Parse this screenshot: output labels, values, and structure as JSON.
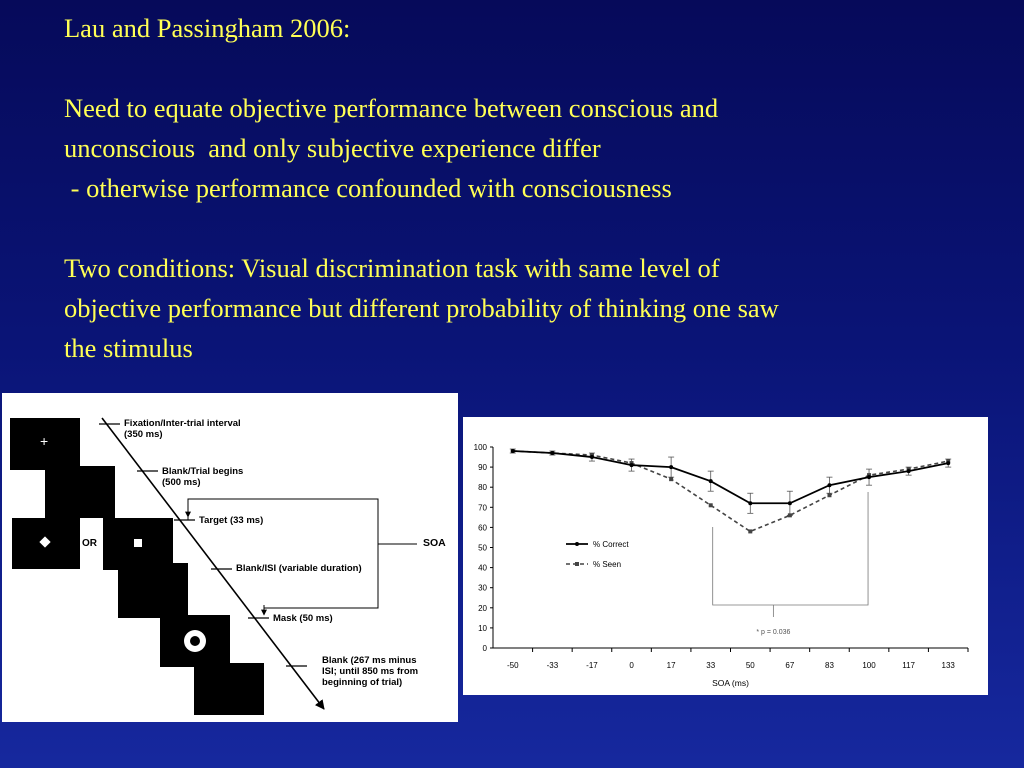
{
  "slide": {
    "lines": [
      "Lau and Passingham 2006:",
      "",
      "Need to equate objective performance between conscious and",
      "unconscious  and only subjective experience differ",
      " - otherwise performance confounded with consciousness",
      "",
      "Two conditions: Visual discrimination task with same level of",
      "objective performance but different probability of thinking one saw",
      "the stimulus"
    ]
  },
  "diagram": {
    "fixation": "Fixation/Inter-trial interval\n(350 ms)",
    "blank_trial": "Blank/Trial begins\n(500 ms)",
    "target": "Target (33 ms)",
    "blank_isi": "Blank/ISI (variable duration)",
    "mask": "Mask (50 ms)",
    "blank_end": "Blank (267 ms minus\nISI; until 850 ms from\nbeginning of trial)",
    "soa": "SOA",
    "or": "OR",
    "fixation_glyph": "+"
  },
  "chart_data": {
    "type": "line",
    "x": [
      -50,
      -33,
      -17,
      0,
      17,
      33,
      50,
      67,
      83,
      100,
      117,
      133
    ],
    "series": [
      {
        "name": "% Correct",
        "values": [
          98,
          97,
          95,
          91,
          90,
          83,
          72,
          72,
          81,
          85,
          88,
          92
        ],
        "errors": [
          1,
          1,
          2,
          3,
          5,
          5,
          5,
          6,
          4,
          4,
          2,
          2
        ],
        "style": "solid"
      },
      {
        "name": "% Seen",
        "values": [
          98,
          97,
          96,
          92,
          84,
          71,
          58,
          66,
          76,
          86,
          89,
          93
        ],
        "style": "dashed"
      }
    ],
    "xlabel": "SOA (ms)",
    "ylabel": "",
    "ylim": [
      0,
      100
    ],
    "yticks": [
      0,
      10,
      20,
      30,
      40,
      50,
      60,
      70,
      80,
      90,
      100
    ],
    "annotation": "* p = 0.036",
    "grid": false,
    "legend": "left-middle",
    "colors": {
      "line": "#000000",
      "seen": "#444444"
    }
  }
}
